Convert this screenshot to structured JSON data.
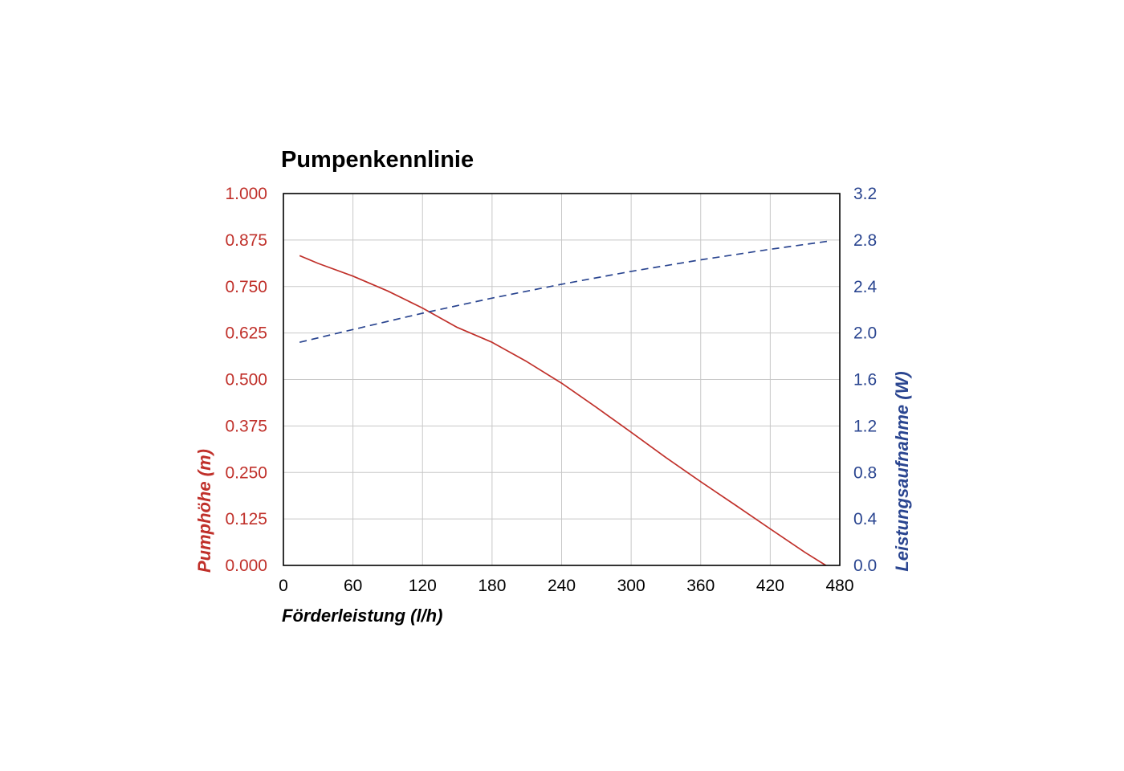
{
  "chart_data": {
    "type": "line",
    "title": "Pumpenkennlinie",
    "xlabel": "Förderleistung (l/h)",
    "ylabel": "Pumphöhe (m)",
    "y2label": "Leistungsaufnahme (W)",
    "xlim": [
      0,
      480
    ],
    "ylim": [
      0,
      1.0
    ],
    "y2lim": [
      0,
      3.2
    ],
    "x_ticks": [
      "0",
      "60",
      "120",
      "180",
      "240",
      "300",
      "360",
      "420",
      "480"
    ],
    "y_ticks": [
      "0.000",
      "0.125",
      "0.250",
      "0.375",
      "0.500",
      "0.625",
      "0.750",
      "0.875",
      "1.000"
    ],
    "y2_ticks": [
      "0.0",
      "0.4",
      "0.8",
      "1.2",
      "1.6",
      "2.0",
      "2.4",
      "2.8",
      "3.2"
    ],
    "grid": true,
    "colors": {
      "head": "#c0302a",
      "power": "#2a4590",
      "frame": "#000000",
      "grid": "#c8c8c8"
    },
    "series": [
      {
        "axis": "left",
        "style": "solid",
        "x": [
          14,
          30,
          60,
          90,
          120,
          150,
          180,
          210,
          240,
          270,
          300,
          330,
          360,
          390,
          420,
          450,
          468
        ],
        "values": [
          0.833,
          0.812,
          0.778,
          0.738,
          0.692,
          0.64,
          0.6,
          0.548,
          0.49,
          0.425,
          0.358,
          0.29,
          0.225,
          0.162,
          0.098,
          0.035,
          0.0
        ]
      },
      {
        "axis": "right",
        "style": "dashed",
        "x": [
          14,
          60,
          120,
          180,
          240,
          300,
          360,
          420,
          470
        ],
        "values": [
          1.92,
          2.03,
          2.17,
          2.3,
          2.42,
          2.53,
          2.63,
          2.72,
          2.79
        ]
      }
    ]
  }
}
